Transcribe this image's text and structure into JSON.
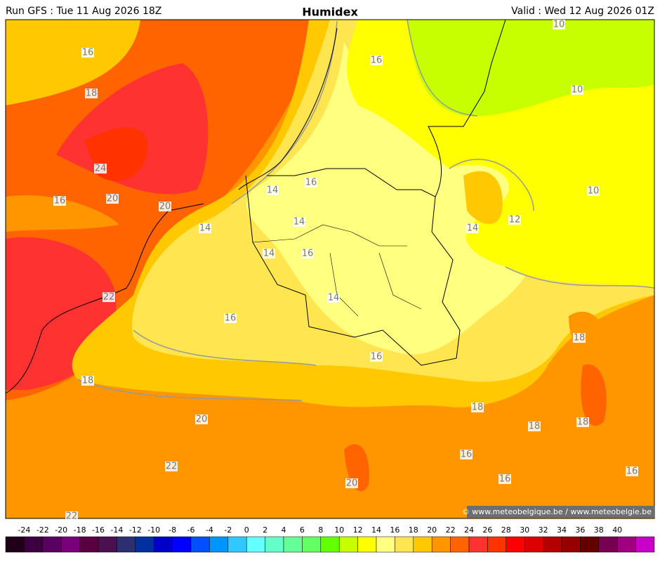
{
  "header": {
    "run": "Run GFS : Tue 11 Aug 2026 18Z",
    "title": "Humidex",
    "valid": "Valid : Wed 12 Aug 2026 01Z"
  },
  "map": {
    "contour_labels": [
      16,
      18,
      24,
      16,
      20,
      20,
      14,
      16,
      14,
      14,
      14,
      16,
      22,
      16,
      14,
      16,
      18,
      20,
      22,
      20,
      22,
      16,
      10,
      10,
      10,
      12,
      14,
      18,
      18,
      18,
      18,
      16,
      16,
      16
    ]
  },
  "footer": {
    "copyright": "© www.meteobelgique.be / www.meteobelgie.be"
  },
  "legend": {
    "ticks": [
      -24,
      -22,
      -20,
      -18,
      -16,
      -14,
      -12,
      -10,
      -8,
      -6,
      -4,
      -2,
      0,
      2,
      4,
      6,
      8,
      10,
      12,
      14,
      16,
      18,
      20,
      22,
      24,
      26,
      28,
      30,
      32,
      34,
      36,
      38,
      40
    ],
    "colors": [
      "#200018",
      "#3c0040",
      "#5a0060",
      "#780078",
      "#5a0040",
      "#4a1050",
      "#2c3070",
      "#0030a0",
      "#0000c8",
      "#0000ff",
      "#0050ff",
      "#0096ff",
      "#30c8ff",
      "#64ffff",
      "#64ffc8",
      "#64ff96",
      "#64ff64",
      "#64ff00",
      "#c8ff00",
      "#ffff00",
      "#ffff80",
      "#ffe650",
      "#ffc800",
      "#ff9600",
      "#ff6400",
      "#ff3232",
      "#ff3200",
      "#ff0000",
      "#dc0000",
      "#b40000",
      "#960000",
      "#640000",
      "#780050",
      "#a00080",
      "#c800c8"
    ]
  }
}
